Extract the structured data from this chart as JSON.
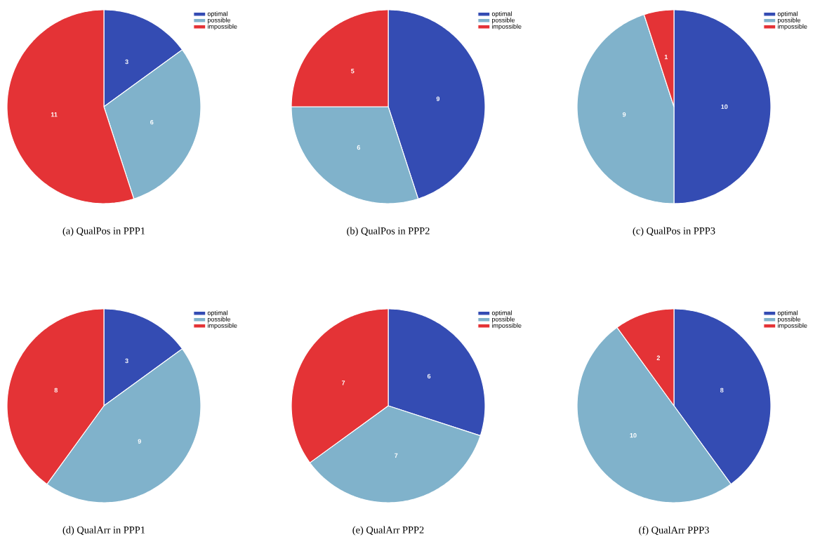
{
  "chart_data": [
    {
      "type": "pie",
      "title": "(a) QualPos in PPP1",
      "categories": [
        "optimal",
        "possible",
        "impossible"
      ],
      "values": [
        3,
        6,
        11
      ],
      "colors": [
        "#344cb3",
        "#80b2cb",
        "#e43336"
      ],
      "data_labels": true,
      "legend": "top right"
    },
    {
      "type": "pie",
      "title": "(b) QualPos in PPP2",
      "categories": [
        "optimal",
        "possible",
        "impossible"
      ],
      "values": [
        9,
        6,
        5
      ],
      "colors": [
        "#344cb3",
        "#80b2cb",
        "#e43336"
      ],
      "data_labels": true,
      "legend": "top right"
    },
    {
      "type": "pie",
      "title": "(c) QualPos in PPP3",
      "categories": [
        "optimal",
        "possible",
        "impossible"
      ],
      "values": [
        10,
        9,
        1
      ],
      "colors": [
        "#344cb3",
        "#80b2cb",
        "#e43336"
      ],
      "data_labels": true,
      "legend": "top right"
    },
    {
      "type": "pie",
      "title": "(d) QualArr in PPP1",
      "categories": [
        "optimal",
        "possible",
        "impossible"
      ],
      "values": [
        3,
        9,
        8
      ],
      "colors": [
        "#344cb3",
        "#80b2cb",
        "#e43336"
      ],
      "data_labels": true,
      "legend": "top right"
    },
    {
      "type": "pie",
      "title": "(e) QualArr PPP2",
      "categories": [
        "optimal",
        "possible",
        "impossible"
      ],
      "values": [
        6,
        7,
        7
      ],
      "colors": [
        "#344cb3",
        "#80b2cb",
        "#e43336"
      ],
      "data_labels": true,
      "legend": "top right"
    },
    {
      "type": "pie",
      "title": "(f) QualArr PPP3",
      "categories": [
        "optimal",
        "possible",
        "impossible"
      ],
      "values": [
        8,
        10,
        2
      ],
      "colors": [
        "#344cb3",
        "#80b2cb",
        "#e43336"
      ],
      "data_labels": true,
      "legend": "top right"
    }
  ]
}
